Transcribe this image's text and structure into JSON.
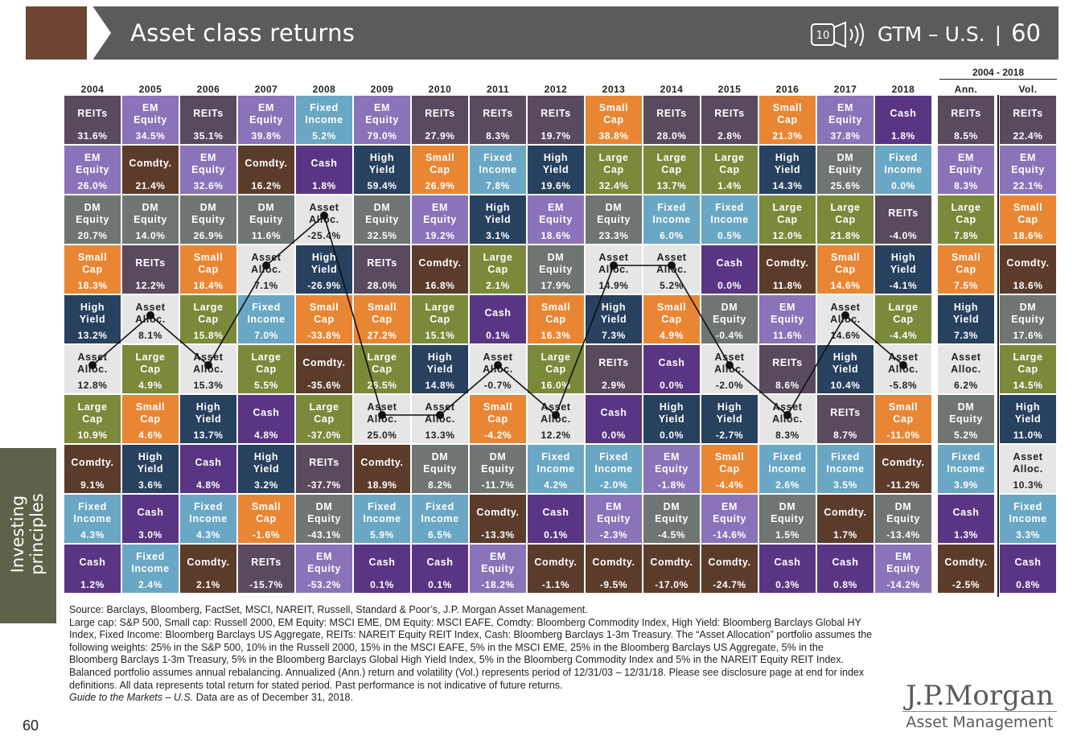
{
  "header": {
    "title": "Asset class returns",
    "icon_text": "10",
    "series": "GTM – U.S.",
    "page": "60",
    "sidebar_label": [
      "Investing",
      "principles"
    ]
  },
  "colors": {
    "REITs": "#5a4a5e",
    "EM Equity": "#8a73b8",
    "DM Equity": "#6f7572",
    "Small Cap": "#e98634",
    "Large Cap": "#7a8a3a",
    "Fixed Income": "#6aa7c4",
    "Asset Alloc.": "#e6e6e6",
    "High Yield": "#27415f",
    "Cash": "#5a3584",
    "Comdty.": "#5b3c2a"
  },
  "chart_data": {
    "type": "table",
    "title": "Asset class returns",
    "years": [
      "2004",
      "2005",
      "2006",
      "2007",
      "2008",
      "2009",
      "2010",
      "2011",
      "2012",
      "2013",
      "2014",
      "2015",
      "2016",
      "2017",
      "2018"
    ],
    "summary_header": "2004 - 2018",
    "summary_columns": [
      "Ann.",
      "Vol."
    ],
    "columns": [
      [
        [
          "REITs",
          "31.6%"
        ],
        [
          "EM Equity",
          "26.0%"
        ],
        [
          "DM Equity",
          "20.7%"
        ],
        [
          "Small Cap",
          "18.3%"
        ],
        [
          "High Yield",
          "13.2%"
        ],
        [
          "Asset Alloc.",
          "12.8%"
        ],
        [
          "Large Cap",
          "10.9%"
        ],
        [
          "Comdty.",
          "9.1%"
        ],
        [
          "Fixed Income",
          "4.3%"
        ],
        [
          "Cash",
          "1.2%"
        ]
      ],
      [
        [
          "EM Equity",
          "34.5%"
        ],
        [
          "Comdty.",
          "21.4%"
        ],
        [
          "DM Equity",
          "14.0%"
        ],
        [
          "REITs",
          "12.2%"
        ],
        [
          "Asset Alloc.",
          "8.1%"
        ],
        [
          "Large Cap",
          "4.9%"
        ],
        [
          "Small Cap",
          "4.6%"
        ],
        [
          "High Yield",
          "3.6%"
        ],
        [
          "Cash",
          "3.0%"
        ],
        [
          "Fixed Income",
          "2.4%"
        ]
      ],
      [
        [
          "REITs",
          "35.1%"
        ],
        [
          "EM Equity",
          "32.6%"
        ],
        [
          "DM Equity",
          "26.9%"
        ],
        [
          "Small Cap",
          "18.4%"
        ],
        [
          "Large Cap",
          "15.8%"
        ],
        [
          "Asset Alloc.",
          "15.3%"
        ],
        [
          "High Yield",
          "13.7%"
        ],
        [
          "Cash",
          "4.8%"
        ],
        [
          "Fixed Income",
          "4.3%"
        ],
        [
          "Comdty.",
          "2.1%"
        ]
      ],
      [
        [
          "EM Equity",
          "39.8%"
        ],
        [
          "Comdty.",
          "16.2%"
        ],
        [
          "DM Equity",
          "11.6%"
        ],
        [
          "Asset Alloc.",
          "7.1%"
        ],
        [
          "Fixed Income",
          "7.0%"
        ],
        [
          "Large Cap",
          "5.5%"
        ],
        [
          "Cash",
          "4.8%"
        ],
        [
          "High Yield",
          "3.2%"
        ],
        [
          "Small Cap",
          "-1.6%"
        ],
        [
          "REITs",
          "-15.7%"
        ]
      ],
      [
        [
          "Fixed Income",
          "5.2%"
        ],
        [
          "Cash",
          "1.8%"
        ],
        [
          "Asset Alloc.",
          "-25.4%"
        ],
        [
          "High Yield",
          "-26.9%"
        ],
        [
          "Small Cap",
          "-33.8%"
        ],
        [
          "Comdty.",
          "-35.6%"
        ],
        [
          "Large Cap",
          "-37.0%"
        ],
        [
          "REITs",
          "-37.7%"
        ],
        [
          "DM Equity",
          "-43.1%"
        ],
        [
          "EM Equity",
          "-53.2%"
        ]
      ],
      [
        [
          "EM Equity",
          "79.0%"
        ],
        [
          "High Yield",
          "59.4%"
        ],
        [
          "DM Equity",
          "32.5%"
        ],
        [
          "REITs",
          "28.0%"
        ],
        [
          "Small Cap",
          "27.2%"
        ],
        [
          "Large Cap",
          "26.5%"
        ],
        [
          "Asset Alloc.",
          "25.0%"
        ],
        [
          "Comdty.",
          "18.9%"
        ],
        [
          "Fixed Income",
          "5.9%"
        ],
        [
          "Cash",
          "0.1%"
        ]
      ],
      [
        [
          "REITs",
          "27.9%"
        ],
        [
          "Small Cap",
          "26.9%"
        ],
        [
          "EM Equity",
          "19.2%"
        ],
        [
          "Comdty.",
          "16.8%"
        ],
        [
          "Large Cap",
          "15.1%"
        ],
        [
          "High Yield",
          "14.8%"
        ],
        [
          "Asset Alloc.",
          "13.3%"
        ],
        [
          "DM Equity",
          "8.2%"
        ],
        [
          "Fixed Income",
          "6.5%"
        ],
        [
          "Cash",
          "0.1%"
        ]
      ],
      [
        [
          "REITs",
          "8.3%"
        ],
        [
          "Fixed Income",
          "7.8%"
        ],
        [
          "High Yield",
          "3.1%"
        ],
        [
          "Large Cap",
          "2.1%"
        ],
        [
          "Cash",
          "0.1%"
        ],
        [
          "Asset Alloc.",
          "-0.7%"
        ],
        [
          "Small Cap",
          "-4.2%"
        ],
        [
          "DM Equity",
          "-11.7%"
        ],
        [
          "Comdty.",
          "-13.3%"
        ],
        [
          "EM Equity",
          "-18.2%"
        ]
      ],
      [
        [
          "REITs",
          "19.7%"
        ],
        [
          "High Yield",
          "19.6%"
        ],
        [
          "EM Equity",
          "18.6%"
        ],
        [
          "DM Equity",
          "17.9%"
        ],
        [
          "Small Cap",
          "16.3%"
        ],
        [
          "Large Cap",
          "16.0%"
        ],
        [
          "Asset Alloc.",
          "12.2%"
        ],
        [
          "Fixed Income",
          "4.2%"
        ],
        [
          "Cash",
          "0.1%"
        ],
        [
          "Comdty.",
          "-1.1%"
        ]
      ],
      [
        [
          "Small Cap",
          "38.8%"
        ],
        [
          "Large Cap",
          "32.4%"
        ],
        [
          "DM Equity",
          "23.3%"
        ],
        [
          "Asset Alloc.",
          "14.9%"
        ],
        [
          "High Yield",
          "7.3%"
        ],
        [
          "REITs",
          "2.9%"
        ],
        [
          "Cash",
          "0.0%"
        ],
        [
          "Fixed Income",
          "-2.0%"
        ],
        [
          "EM Equity",
          "-2.3%"
        ],
        [
          "Comdty.",
          "-9.5%"
        ]
      ],
      [
        [
          "REITs",
          "28.0%"
        ],
        [
          "Large Cap",
          "13.7%"
        ],
        [
          "Fixed Income",
          "6.0%"
        ],
        [
          "Asset Alloc.",
          "5.2%"
        ],
        [
          "Small Cap",
          "4.9%"
        ],
        [
          "Cash",
          "0.0%"
        ],
        [
          "High Yield",
          "0.0%"
        ],
        [
          "EM Equity",
          "-1.8%"
        ],
        [
          "DM Equity",
          "-4.5%"
        ],
        [
          "Comdty.",
          "-17.0%"
        ]
      ],
      [
        [
          "REITs",
          "2.8%"
        ],
        [
          "Large Cap",
          "1.4%"
        ],
        [
          "Fixed Income",
          "0.5%"
        ],
        [
          "Cash",
          "0.0%"
        ],
        [
          "DM Equity",
          "-0.4%"
        ],
        [
          "Asset Alloc.",
          "-2.0%"
        ],
        [
          "High Yield",
          "-2.7%"
        ],
        [
          "Small Cap",
          "-4.4%"
        ],
        [
          "EM Equity",
          "-14.6%"
        ],
        [
          "Comdty.",
          "-24.7%"
        ]
      ],
      [
        [
          "Small Cap",
          "21.3%"
        ],
        [
          "High Yield",
          "14.3%"
        ],
        [
          "Large Cap",
          "12.0%"
        ],
        [
          "Comdty.",
          "11.8%"
        ],
        [
          "EM Equity",
          "11.6%"
        ],
        [
          "REITs",
          "8.6%"
        ],
        [
          "Asset Alloc.",
          "8.3%"
        ],
        [
          "Fixed Income",
          "2.6%"
        ],
        [
          "DM Equity",
          "1.5%"
        ],
        [
          "Cash",
          "0.3%"
        ]
      ],
      [
        [
          "EM Equity",
          "37.8%"
        ],
        [
          "DM Equity",
          "25.6%"
        ],
        [
          "Large Cap",
          "21.8%"
        ],
        [
          "Small Cap",
          "14.6%"
        ],
        [
          "Asset Alloc.",
          "14.6%"
        ],
        [
          "High Yield",
          "10.4%"
        ],
        [
          "REITs",
          "8.7%"
        ],
        [
          "Fixed Income",
          "3.5%"
        ],
        [
          "Comdty.",
          "1.7%"
        ],
        [
          "Cash",
          "0.8%"
        ]
      ],
      [
        [
          "Cash",
          "1.8%"
        ],
        [
          "Fixed Income",
          "0.0%"
        ],
        [
          "REITs",
          "-4.0%"
        ],
        [
          "High Yield",
          "-4.1%"
        ],
        [
          "Large Cap",
          "-4.4%"
        ],
        [
          "Asset Alloc.",
          "-5.8%"
        ],
        [
          "Small Cap",
          "-11.0%"
        ],
        [
          "Comdty.",
          "-11.2%"
        ],
        [
          "DM Equity",
          "-13.4%"
        ],
        [
          "EM Equity",
          "-14.2%"
        ]
      ]
    ],
    "annualized": [
      [
        "REITs",
        "8.5%"
      ],
      [
        "EM Equity",
        "8.3%"
      ],
      [
        "Large Cap",
        "7.8%"
      ],
      [
        "Small Cap",
        "7.5%"
      ],
      [
        "High Yield",
        "7.3%"
      ],
      [
        "Asset Alloc.",
        "6.2%"
      ],
      [
        "DM Equity",
        "5.2%"
      ],
      [
        "Fixed Income",
        "3.9%"
      ],
      [
        "Cash",
        "1.3%"
      ],
      [
        "Comdty.",
        "-2.5%"
      ]
    ],
    "volatility": [
      [
        "REITs",
        "22.4%"
      ],
      [
        "EM Equity",
        "22.1%"
      ],
      [
        "Small Cap",
        "18.6%"
      ],
      [
        "Comdty.",
        "18.6%"
      ],
      [
        "DM Equity",
        "17.6%"
      ],
      [
        "Large Cap",
        "14.5%"
      ],
      [
        "High Yield",
        "11.0%"
      ],
      [
        "Asset Alloc.",
        "10.3%"
      ],
      [
        "Fixed Income",
        "3.3%"
      ],
      [
        "Cash",
        "0.8%"
      ]
    ]
  },
  "footnote": {
    "lines": [
      "Source: Barclays, Bloomberg, FactSet, MSCI, NAREIT, Russell, Standard & Poor’s, J.P. Morgan Asset Management.",
      "Large cap: S&P 500, Small cap: Russell 2000, EM Equity: MSCI EME, DM Equity: MSCI EAFE, Comdty: Bloomberg Commodity Index, High Yield: Bloomberg Barclays Global HY Index, Fixed Income: Bloomberg Barclays US Aggregate, REITs: NAREIT Equity REIT Index, Cash: Bloomberg Barclays 1-3m Treasury. The “Asset Allocation” portfolio assumes the following weights: 25% in the S&P 500, 10% in the Russell 2000, 15% in the MSCI EAFE, 5% in the MSCI EME, 25% in the Bloomberg Barclays US Aggregate, 5% in the Bloomberg Barclays 1-3m Treasury, 5% in the Bloomberg Barclays Global High Yield Index, 5% in the Bloomberg Commodity Index and 5% in the NAREIT Equity REIT Index. Balanced portfolio assumes annual rebalancing. Annualized (Ann.) return and volatility (Vol.) represents period of 12/31/03 – 12/31/18. Please see disclosure page at end for index definitions. All data represents total return for stated period. Past performance is not indicative of future returns."
    ],
    "guide_italic": "Guide to the Markets – U.S.",
    "guide_rest": " Data are as of December 31, 2018."
  },
  "logo": {
    "line1": "J.P.Morgan",
    "line2": "Asset Management"
  },
  "page_number": "60"
}
